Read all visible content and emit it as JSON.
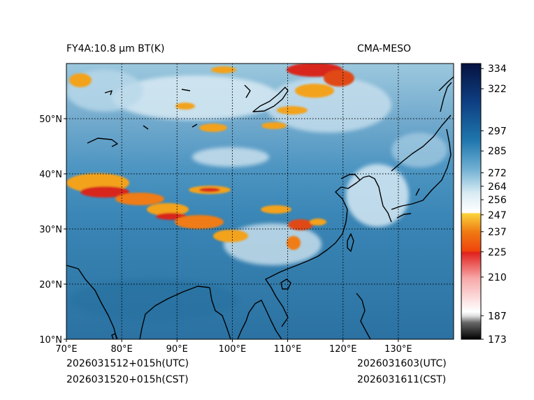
{
  "header": {
    "title_left": "FY4A:10.8 μm BT(K)",
    "title_right": "CMA-MESO"
  },
  "map": {
    "lon_range": [
      70,
      140
    ],
    "lat_range": [
      10,
      60
    ],
    "lon_ticks": [
      {
        "value": 70,
        "label": "70°E"
      },
      {
        "value": 80,
        "label": "80°E"
      },
      {
        "value": 90,
        "label": "90°E"
      },
      {
        "value": 100,
        "label": "100°E"
      },
      {
        "value": 110,
        "label": "110°E"
      },
      {
        "value": 120,
        "label": "120°E"
      },
      {
        "value": 130,
        "label": "130°E"
      }
    ],
    "lat_ticks": [
      {
        "value": 10,
        "label": "10°N"
      },
      {
        "value": 20,
        "label": "20°N"
      },
      {
        "value": 30,
        "label": "30°N"
      },
      {
        "value": 40,
        "label": "40°N"
      },
      {
        "value": 50,
        "label": "50°N"
      }
    ]
  },
  "colorbar": {
    "range": [
      173,
      337
    ],
    "ticks": [
      173,
      187,
      210,
      225,
      237,
      247,
      256,
      264,
      272,
      285,
      297,
      322,
      334
    ]
  },
  "footer": {
    "valid_utc": "2026031512+015h(UTC)",
    "valid_cst": "2026031520+015h(CST)",
    "init_utc": "2026031603(UTC)",
    "init_cst": "2026031611(CST)"
  },
  "colors": {
    "ocean": "#2d77a6",
    "land_mid": "#3f8dbb",
    "cloud_light": "#cfe3ef",
    "cold_cloud": "#f3a21a",
    "deep_cloud": "#d8281a"
  }
}
